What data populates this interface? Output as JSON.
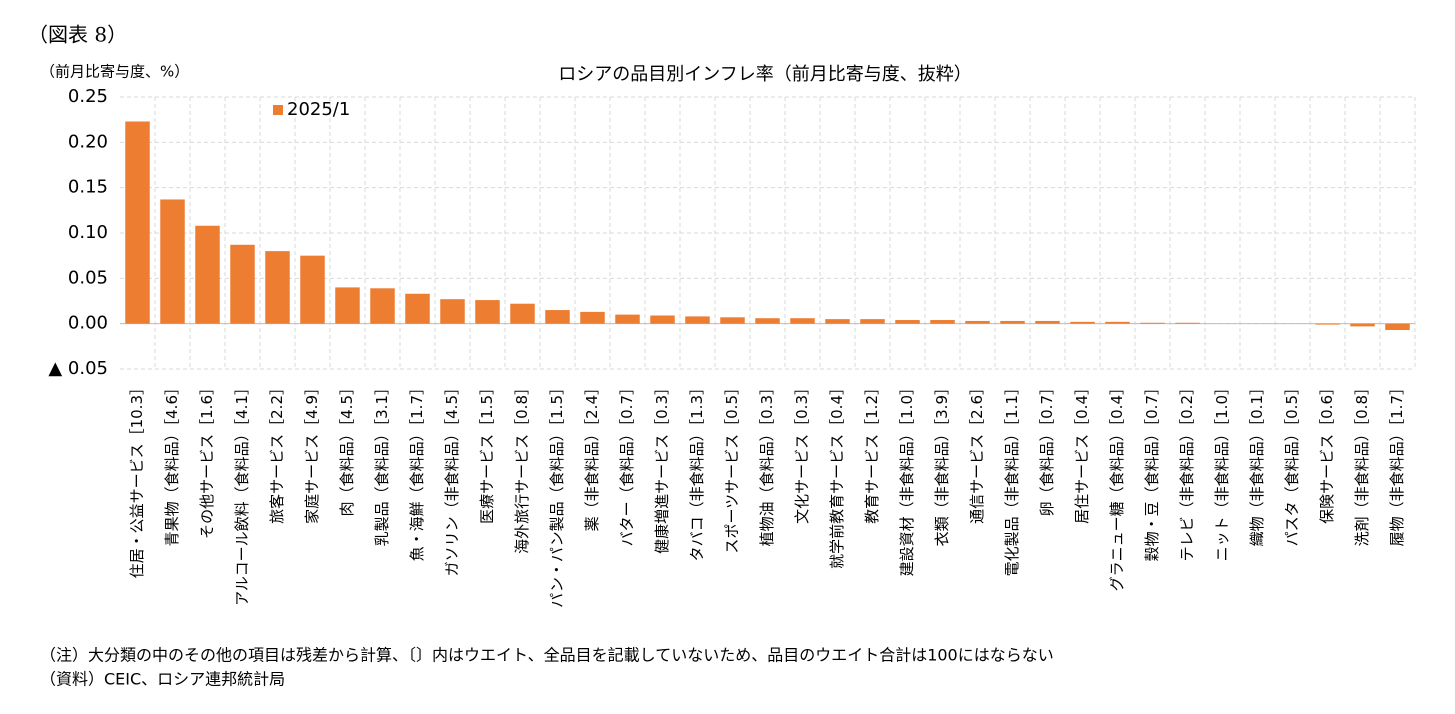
{
  "figure_label": "（図表 8）",
  "chart_data": {
    "type": "bar",
    "title": "ロシアの品目別インフレ率（前月比寄与度、抜粋）",
    "y_label": "（前月比寄与度、%）",
    "categories": [
      "住居・公益サービス［10.3］",
      "青果物（食料品）［4.6］",
      "その他サービス［1.6］",
      "アルコール飲料（食料品）［4.1］",
      "旅客サービス［2.2］",
      "家庭サービス［4.9］",
      "肉（食料品）［4.5］",
      "乳製品（食料品）［3.1］",
      "魚・海鮮（食料品）［1.7］",
      "ガソリン（非食料品）［4.5］",
      "医療サービス［1.5］",
      "海外旅行サービス［0.8］",
      "パン・パン製品（食料品）［1.5］",
      "薬（非食料品）［2.4］",
      "バター（食料品）［0.7］",
      "健康増進サービス［0.3］",
      "タバコ（非食料品）［1.3］",
      "スポーツサービス［0.5］",
      "植物油（食料品）［0.3］",
      "文化サービス［0.3］",
      "就学前教育サービス［0.4］",
      "教育サービス［1.2］",
      "建設資材（非食料品）［1.0］",
      "衣類（非食料品）［3.9］",
      "通信サービス［2.6］",
      "電化製品（非食料品）［1.1］",
      "卵（食料品）［0.7］",
      "居住サービス［0.4］",
      "グラニュー糖（食料品）［0.4］",
      "穀物・豆（食料品）［0.7］",
      "テレビ（非食料品）［0.2］",
      "ニット（非食料品）［1.0］",
      "織物（非食料品）［0.1］",
      "パスタ（食料品）［0.5］",
      "保険サービス［0.6］",
      "洗剤（非食料品）［0.8］",
      "履物（非食料品）［1.7］"
    ],
    "series": [
      {
        "name": "2025/1",
        "color": "#ED7D31",
        "values": [
          0.223,
          0.137,
          0.108,
          0.087,
          0.08,
          0.075,
          0.04,
          0.039,
          0.033,
          0.027,
          0.026,
          0.022,
          0.015,
          0.013,
          0.01,
          0.009,
          0.008,
          0.007,
          0.006,
          0.006,
          0.005,
          0.005,
          0.004,
          0.004,
          0.003,
          0.003,
          0.003,
          0.002,
          0.002,
          0.001,
          0.001,
          0,
          0,
          0,
          -0.001,
          -0.003,
          -0.007
        ]
      }
    ],
    "ylim": [
      -0.05,
      0.25
    ],
    "yticks": [
      0.25,
      {
        "value": 0.2,
        "label": "0.20"
      },
      0.15,
      {
        "value": 0.1,
        "label": "0.10"
      },
      0.05,
      {
        "value": 0,
        "label": "0.00"
      },
      {
        "value": -0.05,
        "label": "▲ 0.05"
      }
    ],
    "grid": true,
    "legend": "upper left"
  },
  "notes": [
    "（注）大分類の中のその他の項目は残差から計算、〔〕内はウエイト、全品目を記載していないため、品目のウエイト合計は100にはならない",
    "（資料）CEIC、ロシア連邦統計局"
  ]
}
